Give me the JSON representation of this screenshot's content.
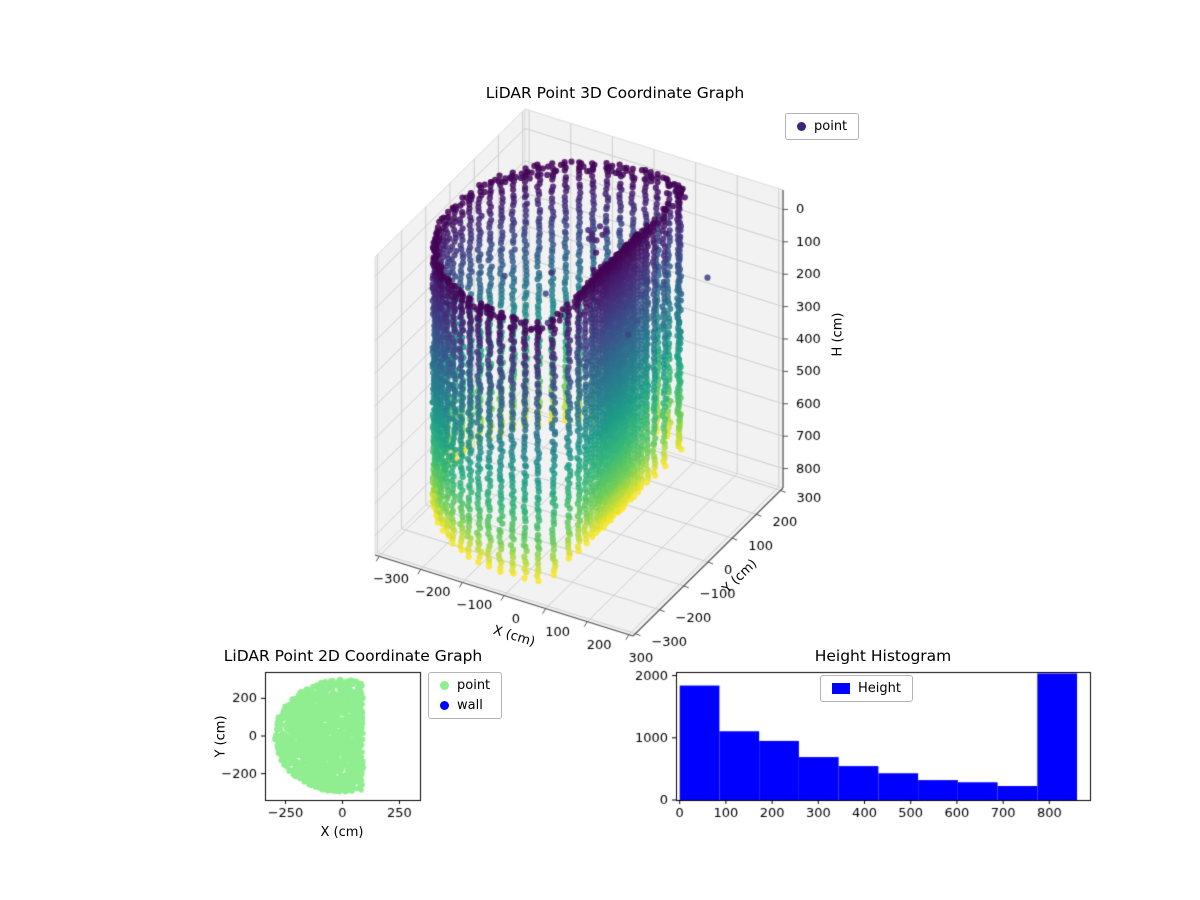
{
  "figure": {
    "background": "#ffffff"
  },
  "chart_data": [
    {
      "id": "lidar-3d",
      "type": "scatter3d",
      "title": "LiDAR Point 3D Coordinate Graph",
      "xlabel": "X (cm)",
      "ylabel": "Y (cm)",
      "zlabel": "H (cm)",
      "xticks": [
        -300,
        -200,
        -100,
        0,
        100,
        200,
        300
      ],
      "yticks": [
        -300,
        -200,
        -100,
        0,
        100,
        200,
        300
      ],
      "zticks": [
        0,
        100,
        200,
        300,
        400,
        500,
        600,
        700,
        800
      ],
      "zaxis_inverted": true,
      "legend": [
        {
          "label": "point",
          "color": "#3e2178"
        }
      ],
      "colormap": "viridis",
      "point_cloud": {
        "shape": "cylinder-wall-scan",
        "radius_cm": 300,
        "wall_x_cm": 90,
        "height_min_cm": 0,
        "height_max_cm": 800,
        "color_by": "height",
        "dark_end": "top"
      }
    },
    {
      "id": "lidar-2d",
      "type": "scatter",
      "title": "LiDAR Point 2D Coordinate Graph",
      "xlabel": "X (cm)",
      "ylabel": "Y (cm)",
      "xticks": [
        -250,
        0,
        250
      ],
      "yticks": [
        200,
        0,
        -200
      ],
      "xlim": [
        -340,
        340
      ],
      "ylim": [
        -340,
        340
      ],
      "legend": [
        {
          "label": "point",
          "color": "#90ee90"
        },
        {
          "label": "wall",
          "color": "#0000ff"
        }
      ],
      "region": {
        "shape": "disc-clipped-by-wall",
        "center_cm": [
          0,
          0
        ],
        "radius_cm": 300,
        "wall_x_cm": 90,
        "point_color": "#90ee90"
      }
    },
    {
      "id": "height-histogram",
      "type": "bar",
      "title": "Height Histogram",
      "legend": [
        {
          "label": "Height",
          "color": "#0000ff"
        }
      ],
      "bar_color": "#0000ff",
      "bin_edges": [
        0,
        86,
        172,
        258,
        344,
        430,
        516,
        602,
        688,
        774,
        860
      ],
      "values": [
        1840,
        1105,
        950,
        690,
        545,
        430,
        320,
        285,
        225,
        2035
      ],
      "xticks": [
        0,
        100,
        200,
        300,
        400,
        500,
        600,
        700,
        800
      ],
      "yticks": [
        0,
        1000,
        2000
      ],
      "xlim": [
        -8,
        888
      ],
      "ylim": [
        0,
        2058
      ]
    }
  ]
}
